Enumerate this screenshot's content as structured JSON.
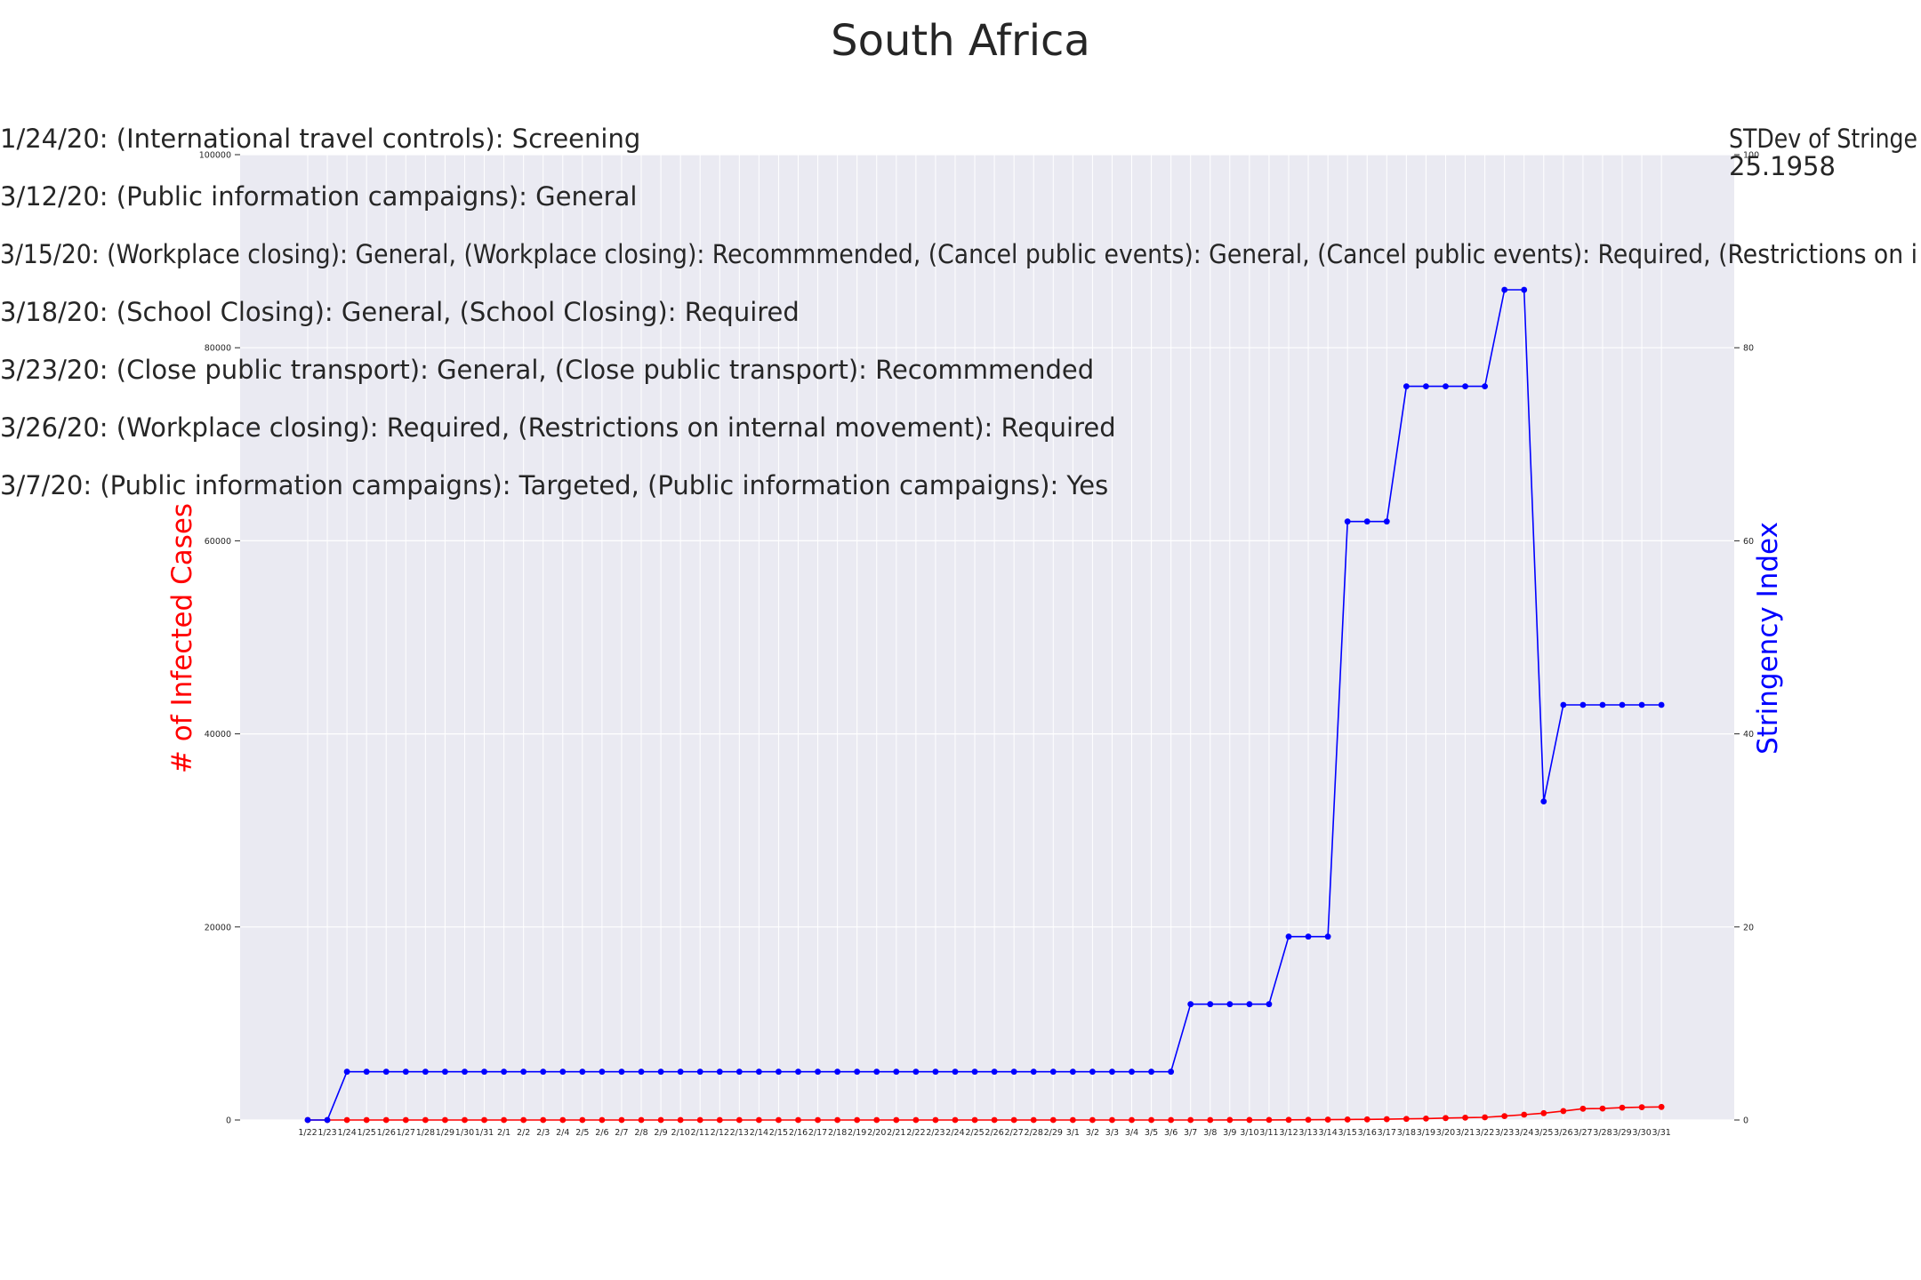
{
  "chart_data": {
    "type": "line",
    "title": "South Africa",
    "xlabel": "",
    "ylabel_left": "# of Infected Cases",
    "ylabel_right": "Stringency Index",
    "ylim_left": [
      0,
      100000
    ],
    "ylim_right": [
      0,
      100
    ],
    "yticks_left": [
      "0",
      "20000",
      "40000",
      "60000",
      "80000",
      "100000"
    ],
    "yticks_right": [
      "0",
      "20",
      "40",
      "60",
      "80",
      "100"
    ],
    "grid": true,
    "colors": {
      "cases": "#ff0000",
      "stringency": "#0000ff",
      "plot_bg": "#eaeaf2",
      "grid": "#ffffff",
      "left_label": "#ff0000",
      "right_label": "#0000ff"
    },
    "categories": [
      "1/22",
      "1/23",
      "1/24",
      "1/25",
      "1/26",
      "1/27",
      "1/28",
      "1/29",
      "1/30",
      "1/31",
      "2/1",
      "2/2",
      "2/3",
      "2/4",
      "2/5",
      "2/6",
      "2/7",
      "2/8",
      "2/9",
      "2/10",
      "2/11",
      "2/12",
      "2/13",
      "2/14",
      "2/15",
      "2/16",
      "2/17",
      "2/18",
      "2/19",
      "2/20",
      "2/21",
      "2/22",
      "2/23",
      "2/24",
      "2/25",
      "2/26",
      "2/27",
      "2/28",
      "2/29",
      "3/1",
      "3/2",
      "3/3",
      "3/4",
      "3/5",
      "3/6",
      "3/7",
      "3/8",
      "3/9",
      "3/10",
      "3/11",
      "3/12",
      "3/13",
      "3/14",
      "3/15",
      "3/16",
      "3/17",
      "3/18",
      "3/19",
      "3/20",
      "3/21",
      "3/22",
      "3/23",
      "3/24",
      "3/25",
      "3/26",
      "3/27",
      "3/28",
      "3/29",
      "3/30",
      "3/31"
    ],
    "series": [
      {
        "key": "cases",
        "axis": "left",
        "values": [
          0,
          0,
          0,
          0,
          0,
          0,
          0,
          0,
          0,
          0,
          0,
          0,
          0,
          0,
          0,
          0,
          0,
          0,
          0,
          0,
          0,
          0,
          0,
          0,
          0,
          0,
          0,
          0,
          0,
          0,
          0,
          0,
          0,
          0,
          0,
          0,
          0,
          0,
          0,
          0,
          0,
          0,
          0,
          1,
          1,
          2,
          3,
          7,
          7,
          13,
          17,
          24,
          38,
          51,
          62,
          85,
          116,
          150,
          202,
          240,
          274,
          402,
          554,
          709,
          927,
          1170,
          1187,
          1280,
          1326,
          1353
        ]
      },
      {
        "key": "stringency",
        "axis": "right",
        "values": [
          0,
          0,
          5,
          5,
          5,
          5,
          5,
          5,
          5,
          5,
          5,
          5,
          5,
          5,
          5,
          5,
          5,
          5,
          5,
          5,
          5,
          5,
          5,
          5,
          5,
          5,
          5,
          5,
          5,
          5,
          5,
          5,
          5,
          5,
          5,
          5,
          5,
          5,
          5,
          5,
          5,
          5,
          5,
          5,
          5,
          12,
          12,
          12,
          12,
          12,
          19,
          19,
          19,
          62,
          62,
          62,
          76,
          76,
          76,
          76,
          76,
          86,
          86,
          33,
          43,
          43,
          43,
          43,
          43,
          43
        ]
      }
    ],
    "annotations": [
      "1/24/20: (International travel controls): Screening",
      "3/12/20: (Public information campaigns): General",
      "3/15/20: (Workplace closing): General, (Workplace closing): Recommmended, (Cancel public events): General, (Cancel public events): Required, (Restrictions on i",
      "3/18/20: (School Closing): General, (School Closing): Required",
      "3/23/20: (Close public transport): General, (Close public transport): Recommmended",
      "3/26/20: (Workplace closing): Required, (Restrictions on internal movement): Required",
      "3/7/20: (Public information campaigns): Targeted, (Public information campaigns): Yes"
    ],
    "stdev_label": "STDev of Stringe",
    "stdev_value": "25.1958"
  }
}
